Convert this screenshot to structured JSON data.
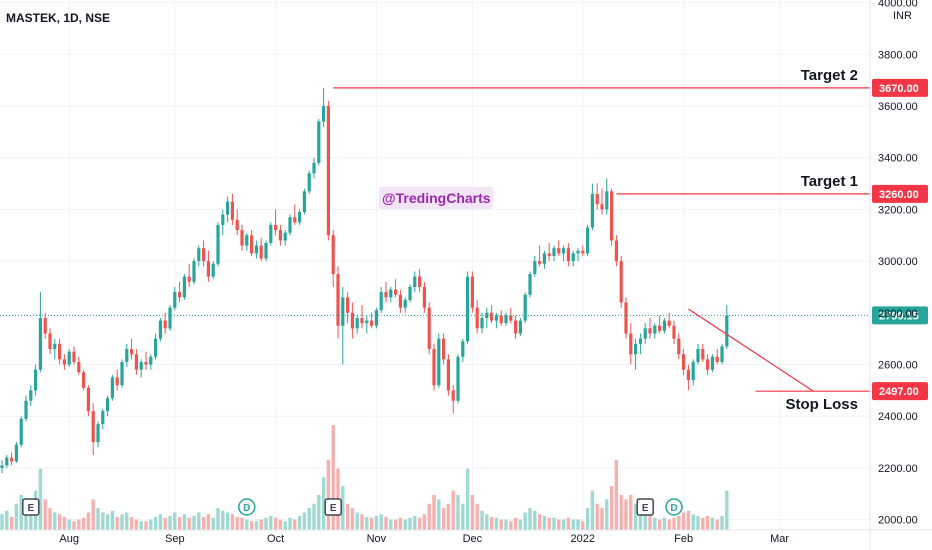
{
  "header": {
    "symbol_title": "MASTEK, 1D, NSE"
  },
  "watermark": "@TredingCharts",
  "currency": "INR",
  "colors": {
    "up": "#26a69a",
    "down": "#ef5350",
    "up_volume": "#9fd9d3",
    "down_volume": "#f7b0ae",
    "target_line": "#f23645",
    "trendline": "#f23645",
    "last_price": "#26a69a",
    "badge": "#f23645",
    "grid": "#f0f3fa",
    "event_earnings": "#434651",
    "event_dividend": "#26a69a",
    "watermark_bg": "#e1bee7"
  },
  "chart_data": {
    "type": "candlestick",
    "title": "MASTEK, 1D, NSE",
    "ylim": [
      1960,
      4010
    ],
    "y_ticks": [
      "4000.00",
      "3800.00",
      "3600.00",
      "3400.00",
      "3200.00",
      "3000.00",
      "2800.00",
      "2600.00",
      "2400.00",
      "2200.00",
      "2000.00"
    ],
    "x_ticks": [
      {
        "label": "Aug",
        "index": 14
      },
      {
        "label": "Sep",
        "index": 36
      },
      {
        "label": "Oct",
        "index": 57
      },
      {
        "label": "Nov",
        "index": 78
      },
      {
        "label": "Dec",
        "index": 98
      },
      {
        "label": "2022",
        "index": 121
      },
      {
        "label": "Feb",
        "index": 142
      },
      {
        "label": "Mar",
        "index": 162
      }
    ],
    "levels": [
      {
        "name": "Target 2",
        "value": 3670.0,
        "label": "3670.00",
        "start_index": 69
      },
      {
        "name": "Target 1",
        "value": 3260.0,
        "label": "3260.00",
        "start_index": 128
      },
      {
        "name": "Stop Loss",
        "value": 2497.0,
        "label": "2497.00",
        "start_index": 157
      }
    ],
    "last_price": {
      "value": 2790.15,
      "label": "2790.15"
    },
    "trendline": {
      "from": {
        "index": 143,
        "value": 2815
      },
      "to": {
        "index": 169,
        "value": 2497
      }
    },
    "events": [
      {
        "type": "earnings",
        "label": "E",
        "index": 6
      },
      {
        "type": "dividend",
        "label": "D",
        "index": 51
      },
      {
        "type": "earnings",
        "label": "E",
        "index": 69
      },
      {
        "type": "earnings",
        "label": "E",
        "index": 134
      },
      {
        "type": "dividend",
        "label": "D",
        "index": 140
      }
    ],
    "series": [
      [
        2200,
        2230,
        2180,
        2210,
        18
      ],
      [
        2210,
        2250,
        2200,
        2240,
        22
      ],
      [
        2240,
        2260,
        2210,
        2225,
        15
      ],
      [
        2225,
        2300,
        2220,
        2290,
        30
      ],
      [
        2290,
        2400,
        2280,
        2390,
        40
      ],
      [
        2390,
        2480,
        2380,
        2460,
        35
      ],
      [
        2460,
        2520,
        2440,
        2500,
        30
      ],
      [
        2500,
        2600,
        2480,
        2580,
        45
      ],
      [
        2580,
        2880,
        2570,
        2780,
        70
      ],
      [
        2780,
        2800,
        2700,
        2720,
        35
      ],
      [
        2720,
        2740,
        2640,
        2660,
        25
      ],
      [
        2660,
        2700,
        2620,
        2680,
        20
      ],
      [
        2680,
        2700,
        2600,
        2620,
        18
      ],
      [
        2620,
        2640,
        2580,
        2600,
        15
      ],
      [
        2600,
        2660,
        2590,
        2650,
        12
      ],
      [
        2650,
        2670,
        2600,
        2610,
        10
      ],
      [
        2610,
        2630,
        2560,
        2570,
        12
      ],
      [
        2570,
        2580,
        2500,
        2510,
        14
      ],
      [
        2510,
        2520,
        2400,
        2420,
        20
      ],
      [
        2420,
        2450,
        2250,
        2300,
        35
      ],
      [
        2300,
        2380,
        2280,
        2370,
        25
      ],
      [
        2370,
        2430,
        2350,
        2420,
        20
      ],
      [
        2420,
        2480,
        2400,
        2470,
        18
      ],
      [
        2470,
        2560,
        2460,
        2550,
        22
      ],
      [
        2550,
        2580,
        2500,
        2520,
        15
      ],
      [
        2520,
        2620,
        2510,
        2610,
        18
      ],
      [
        2610,
        2680,
        2590,
        2660,
        20
      ],
      [
        2660,
        2700,
        2620,
        2640,
        15
      ],
      [
        2640,
        2660,
        2560,
        2580,
        12
      ],
      [
        2580,
        2620,
        2550,
        2610,
        10
      ],
      [
        2610,
        2650,
        2580,
        2600,
        10
      ],
      [
        2600,
        2640,
        2580,
        2630,
        12
      ],
      [
        2630,
        2720,
        2620,
        2700,
        15
      ],
      [
        2700,
        2780,
        2690,
        2770,
        18
      ],
      [
        2770,
        2800,
        2720,
        2740,
        14
      ],
      [
        2740,
        2830,
        2730,
        2820,
        16
      ],
      [
        2820,
        2900,
        2810,
        2880,
        20
      ],
      [
        2880,
        2920,
        2840,
        2860,
        15
      ],
      [
        2860,
        2950,
        2850,
        2940,
        18
      ],
      [
        2940,
        2990,
        2900,
        2920,
        14
      ],
      [
        2920,
        3010,
        2910,
        3000,
        16
      ],
      [
        3000,
        3060,
        2980,
        3050,
        20
      ],
      [
        3050,
        3080,
        2980,
        3000,
        15
      ],
      [
        3000,
        3040,
        2920,
        2940,
        18
      ],
      [
        2940,
        3000,
        2930,
        2990,
        14
      ],
      [
        2990,
        3150,
        2980,
        3140,
        25
      ],
      [
        3140,
        3200,
        3100,
        3180,
        22
      ],
      [
        3180,
        3250,
        3150,
        3230,
        20
      ],
      [
        3230,
        3260,
        3140,
        3160,
        18
      ],
      [
        3160,
        3200,
        3100,
        3120,
        15
      ],
      [
        3120,
        3140,
        3040,
        3060,
        14
      ],
      [
        3060,
        3110,
        3040,
        3100,
        12
      ],
      [
        3100,
        3120,
        3020,
        3030,
        10
      ],
      [
        3030,
        3080,
        3010,
        3060,
        10
      ],
      [
        3060,
        3090,
        3000,
        3010,
        12
      ],
      [
        3010,
        3080,
        3000,
        3070,
        14
      ],
      [
        3070,
        3150,
        3060,
        3140,
        16
      ],
      [
        3140,
        3200,
        3100,
        3120,
        14
      ],
      [
        3120,
        3140,
        3060,
        3080,
        12
      ],
      [
        3080,
        3120,
        3060,
        3110,
        10
      ],
      [
        3110,
        3180,
        3100,
        3170,
        14
      ],
      [
        3170,
        3220,
        3140,
        3150,
        12
      ],
      [
        3150,
        3200,
        3140,
        3190,
        16
      ],
      [
        3190,
        3280,
        3180,
        3270,
        20
      ],
      [
        3270,
        3350,
        3260,
        3340,
        25
      ],
      [
        3340,
        3400,
        3320,
        3380,
        30
      ],
      [
        3380,
        3550,
        3370,
        3540,
        40
      ],
      [
        3540,
        3670,
        3520,
        3600,
        60
      ],
      [
        3600,
        3620,
        3080,
        3100,
        80
      ],
      [
        3100,
        3120,
        2900,
        2950,
        120
      ],
      [
        2950,
        2980,
        2700,
        2750,
        70
      ],
      [
        2750,
        2900,
        2600,
        2860,
        50
      ],
      [
        2860,
        2880,
        2760,
        2800,
        30
      ],
      [
        2800,
        2840,
        2700,
        2740,
        25
      ],
      [
        2740,
        2790,
        2720,
        2780,
        20
      ],
      [
        2780,
        2830,
        2740,
        2760,
        18
      ],
      [
        2760,
        2790,
        2720,
        2770,
        15
      ],
      [
        2770,
        2800,
        2740,
        2750,
        14
      ],
      [
        2750,
        2820,
        2740,
        2810,
        16
      ],
      [
        2810,
        2900,
        2800,
        2880,
        18
      ],
      [
        2880,
        2920,
        2840,
        2860,
        15
      ],
      [
        2860,
        2900,
        2840,
        2890,
        12
      ],
      [
        2890,
        2930,
        2860,
        2870,
        12
      ],
      [
        2870,
        2890,
        2800,
        2820,
        14
      ],
      [
        2820,
        2860,
        2800,
        2850,
        12
      ],
      [
        2850,
        2910,
        2840,
        2900,
        14
      ],
      [
        2900,
        2960,
        2880,
        2940,
        16
      ],
      [
        2940,
        2970,
        2880,
        2900,
        14
      ],
      [
        2900,
        2920,
        2800,
        2820,
        18
      ],
      [
        2820,
        2840,
        2640,
        2660,
        30
      ],
      [
        2660,
        2680,
        2500,
        2520,
        40
      ],
      [
        2520,
        2720,
        2510,
        2700,
        35
      ],
      [
        2700,
        2720,
        2600,
        2620,
        25
      ],
      [
        2620,
        2640,
        2480,
        2500,
        30
      ],
      [
        2500,
        2520,
        2410,
        2460,
        45
      ],
      [
        2460,
        2640,
        2450,
        2630,
        40
      ],
      [
        2630,
        2700,
        2610,
        2690,
        30
      ],
      [
        2690,
        2960,
        2680,
        2940,
        70
      ],
      [
        2940,
        2960,
        2800,
        2820,
        40
      ],
      [
        2820,
        2850,
        2720,
        2740,
        30
      ],
      [
        2740,
        2800,
        2720,
        2780,
        22
      ],
      [
        2780,
        2820,
        2740,
        2800,
        18
      ],
      [
        2800,
        2830,
        2760,
        2770,
        15
      ],
      [
        2770,
        2800,
        2740,
        2790,
        14
      ],
      [
        2790,
        2810,
        2750,
        2760,
        12
      ],
      [
        2760,
        2800,
        2750,
        2790,
        12
      ],
      [
        2790,
        2820,
        2760,
        2770,
        10
      ],
      [
        2770,
        2790,
        2700,
        2720,
        14
      ],
      [
        2720,
        2780,
        2710,
        2770,
        12
      ],
      [
        2770,
        2880,
        2760,
        2870,
        20
      ],
      [
        2870,
        2960,
        2860,
        2950,
        25
      ],
      [
        2950,
        3020,
        2940,
        3000,
        22
      ],
      [
        3000,
        3060,
        2980,
        2990,
        18
      ],
      [
        2990,
        3040,
        2970,
        3030,
        16
      ],
      [
        3030,
        3070,
        3000,
        3020,
        14
      ],
      [
        3020,
        3060,
        3000,
        3050,
        14
      ],
      [
        3050,
        3080,
        3020,
        3030,
        12
      ],
      [
        3030,
        3060,
        3000,
        3050,
        12
      ],
      [
        3050,
        3070,
        2980,
        3000,
        14
      ],
      [
        3000,
        3040,
        2980,
        3030,
        12
      ],
      [
        3030,
        3050,
        3000,
        3040,
        12
      ],
      [
        3040,
        3060,
        3020,
        3030,
        10
      ],
      [
        3030,
        3140,
        3020,
        3130,
        25
      ],
      [
        3130,
        3300,
        3120,
        3260,
        45
      ],
      [
        3260,
        3300,
        3200,
        3220,
        30
      ],
      [
        3220,
        3280,
        3180,
        3200,
        25
      ],
      [
        3200,
        3320,
        3180,
        3270,
        35
      ],
      [
        3270,
        3280,
        3060,
        3080,
        50
      ],
      [
        3080,
        3100,
        2980,
        3000,
        80
      ],
      [
        3000,
        3020,
        2820,
        2840,
        40
      ],
      [
        2840,
        2860,
        2700,
        2720,
        35
      ],
      [
        2720,
        2760,
        2600,
        2640,
        40
      ],
      [
        2640,
        2700,
        2580,
        2680,
        30
      ],
      [
        2680,
        2720,
        2640,
        2700,
        25
      ],
      [
        2700,
        2760,
        2680,
        2740,
        20
      ],
      [
        2740,
        2780,
        2700,
        2720,
        16
      ],
      [
        2720,
        2760,
        2700,
        2750,
        14
      ],
      [
        2750,
        2790,
        2720,
        2730,
        12
      ],
      [
        2730,
        2780,
        2720,
        2770,
        14
      ],
      [
        2770,
        2800,
        2740,
        2750,
        12
      ],
      [
        2750,
        2770,
        2680,
        2700,
        14
      ],
      [
        2700,
        2720,
        2620,
        2640,
        16
      ],
      [
        2640,
        2660,
        2560,
        2580,
        20
      ],
      [
        2580,
        2600,
        2500,
        2540,
        22
      ],
      [
        2540,
        2620,
        2520,
        2610,
        18
      ],
      [
        2610,
        2680,
        2600,
        2660,
        16
      ],
      [
        2660,
        2680,
        2610,
        2620,
        14
      ],
      [
        2620,
        2640,
        2560,
        2580,
        16
      ],
      [
        2580,
        2640,
        2570,
        2630,
        14
      ],
      [
        2630,
        2660,
        2600,
        2610,
        12
      ],
      [
        2610,
        2680,
        2600,
        2670,
        16
      ],
      [
        2670,
        2830,
        2660,
        2790,
        45
      ]
    ]
  }
}
